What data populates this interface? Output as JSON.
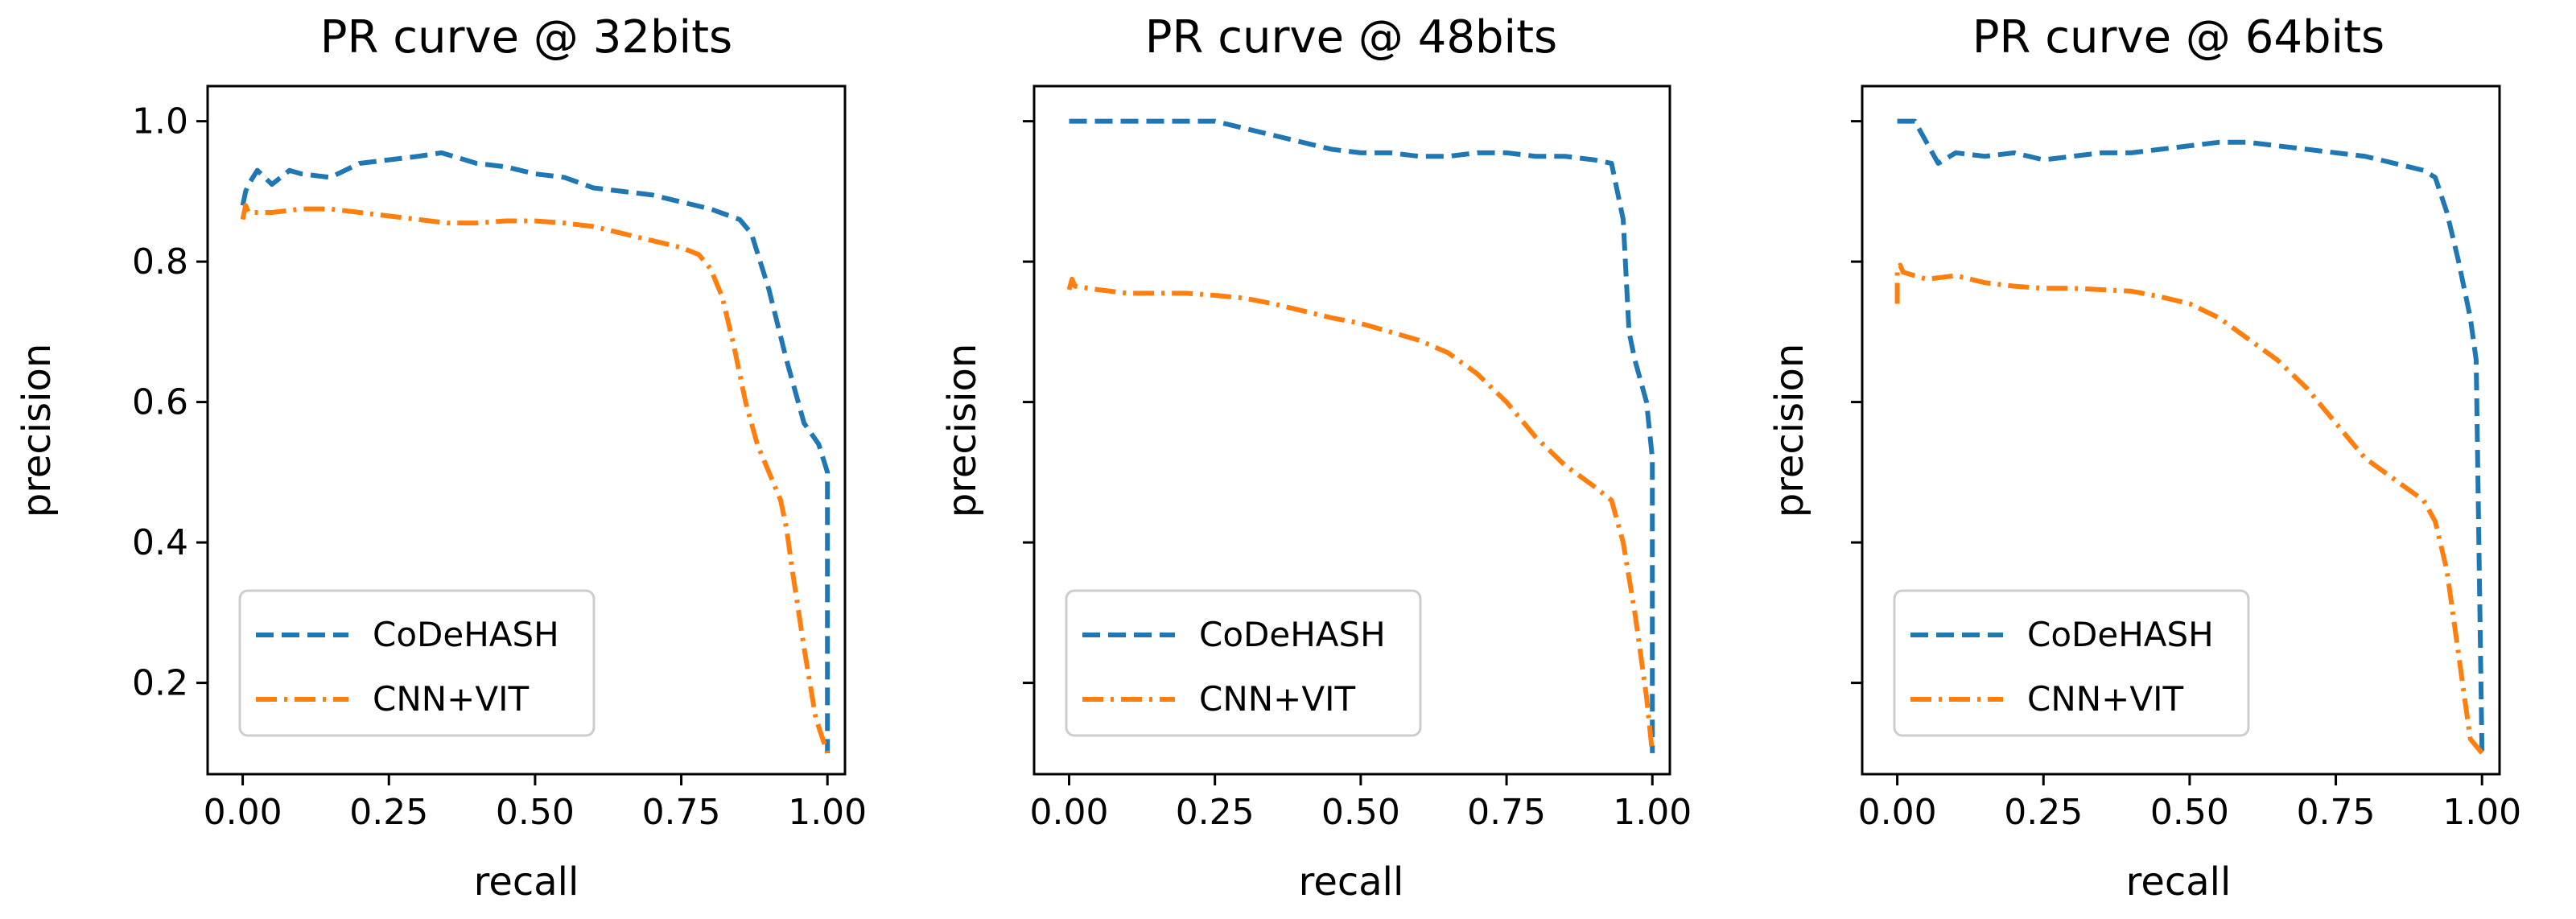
{
  "chart_data": [
    {
      "type": "line",
      "title": "PR curve @ 32bits",
      "xlabel": "recall",
      "ylabel": "precision",
      "xlim": [
        -0.06,
        1.03
      ],
      "ylim": [
        0.07,
        1.05
      ],
      "xticks": [
        0.0,
        0.25,
        0.5,
        0.75,
        1.0
      ],
      "xtick_labels": [
        "0.00",
        "0.25",
        "0.50",
        "0.75",
        "1.00"
      ],
      "yticks": [
        0.2,
        0.4,
        0.6,
        0.8,
        1.0
      ],
      "ytick_labels": [
        "0.2",
        "0.4",
        "0.6",
        "0.8",
        "1.0"
      ],
      "show_ytick_labels": true,
      "legend_position": "lower-left",
      "series": [
        {
          "name": "CoDeHASH",
          "color": "#1f77b4",
          "style": "dashed",
          "x": [
            0.0,
            0.005,
            0.01,
            0.025,
            0.05,
            0.08,
            0.1,
            0.15,
            0.2,
            0.25,
            0.3,
            0.34,
            0.4,
            0.45,
            0.5,
            0.55,
            0.6,
            0.65,
            0.7,
            0.75,
            0.8,
            0.85,
            0.87,
            0.9,
            0.93,
            0.96,
            0.985,
            1.0,
            1.0
          ],
          "y": [
            0.88,
            0.9,
            0.91,
            0.93,
            0.91,
            0.93,
            0.925,
            0.92,
            0.94,
            0.945,
            0.95,
            0.955,
            0.94,
            0.935,
            0.925,
            0.92,
            0.905,
            0.9,
            0.895,
            0.885,
            0.875,
            0.86,
            0.84,
            0.76,
            0.66,
            0.57,
            0.54,
            0.5,
            0.1
          ]
        },
        {
          "name": "CNN+VIT",
          "color": "#ff7f0e",
          "style": "dashdot",
          "x": [
            0.0,
            0.005,
            0.01,
            0.02,
            0.05,
            0.1,
            0.15,
            0.2,
            0.25,
            0.3,
            0.35,
            0.4,
            0.45,
            0.5,
            0.55,
            0.6,
            0.65,
            0.7,
            0.75,
            0.78,
            0.8,
            0.82,
            0.84,
            0.86,
            0.88,
            0.9,
            0.92,
            0.93,
            0.94,
            0.96,
            0.98,
            1.0
          ],
          "y": [
            0.86,
            0.88,
            0.87,
            0.87,
            0.87,
            0.875,
            0.875,
            0.87,
            0.865,
            0.86,
            0.855,
            0.855,
            0.858,
            0.858,
            0.855,
            0.85,
            0.84,
            0.83,
            0.82,
            0.81,
            0.79,
            0.75,
            0.68,
            0.6,
            0.54,
            0.5,
            0.46,
            0.42,
            0.36,
            0.25,
            0.15,
            0.1
          ]
        }
      ]
    },
    {
      "type": "line",
      "title": "PR curve @ 48bits",
      "xlabel": "recall",
      "ylabel": "precision",
      "xlim": [
        -0.06,
        1.03
      ],
      "ylim": [
        0.07,
        1.05
      ],
      "xticks": [
        0.0,
        0.25,
        0.5,
        0.75,
        1.0
      ],
      "xtick_labels": [
        "0.00",
        "0.25",
        "0.50",
        "0.75",
        "1.00"
      ],
      "yticks": [
        0.2,
        0.4,
        0.6,
        0.8,
        1.0
      ],
      "ytick_labels": [
        "",
        "",
        "",
        "",
        ""
      ],
      "show_ytick_labels": false,
      "legend_position": "lower-left",
      "series": [
        {
          "name": "CoDeHASH",
          "color": "#1f77b4",
          "style": "dashed",
          "x": [
            0.0,
            0.05,
            0.1,
            0.15,
            0.2,
            0.25,
            0.3,
            0.35,
            0.4,
            0.45,
            0.5,
            0.55,
            0.6,
            0.65,
            0.7,
            0.75,
            0.8,
            0.85,
            0.9,
            0.93,
            0.95,
            0.96,
            0.97,
            0.99,
            1.0,
            1.0
          ],
          "y": [
            1.0,
            1.0,
            1.0,
            1.0,
            1.0,
            1.0,
            0.99,
            0.98,
            0.97,
            0.96,
            0.955,
            0.955,
            0.95,
            0.95,
            0.955,
            0.955,
            0.95,
            0.95,
            0.945,
            0.94,
            0.86,
            0.7,
            0.66,
            0.6,
            0.52,
            0.1
          ]
        },
        {
          "name": "CNN+VIT",
          "color": "#ff7f0e",
          "style": "dashdot",
          "x": [
            0.0,
            0.005,
            0.01,
            0.05,
            0.1,
            0.15,
            0.2,
            0.25,
            0.3,
            0.35,
            0.4,
            0.45,
            0.5,
            0.55,
            0.6,
            0.65,
            0.7,
            0.75,
            0.8,
            0.85,
            0.9,
            0.93,
            0.95,
            0.97,
            0.99,
            1.0
          ],
          "y": [
            0.76,
            0.775,
            0.765,
            0.76,
            0.755,
            0.755,
            0.755,
            0.752,
            0.748,
            0.74,
            0.73,
            0.72,
            0.712,
            0.7,
            0.688,
            0.67,
            0.64,
            0.6,
            0.55,
            0.51,
            0.48,
            0.46,
            0.4,
            0.3,
            0.18,
            0.1
          ]
        }
      ]
    },
    {
      "type": "line",
      "title": "PR curve @ 64bits",
      "xlabel": "recall",
      "ylabel": "precision",
      "xlim": [
        -0.06,
        1.03
      ],
      "ylim": [
        0.07,
        1.05
      ],
      "xticks": [
        0.0,
        0.25,
        0.5,
        0.75,
        1.0
      ],
      "xtick_labels": [
        "0.00",
        "0.25",
        "0.50",
        "0.75",
        "1.00"
      ],
      "yticks": [
        0.2,
        0.4,
        0.6,
        0.8,
        1.0
      ],
      "ytick_labels": [
        "",
        "",
        "",
        "",
        ""
      ],
      "show_ytick_labels": false,
      "legend_position": "lower-left",
      "series": [
        {
          "name": "CoDeHASH",
          "color": "#1f77b4",
          "style": "dashed",
          "x": [
            0.0,
            0.03,
            0.05,
            0.07,
            0.1,
            0.15,
            0.2,
            0.25,
            0.3,
            0.35,
            0.4,
            0.45,
            0.5,
            0.55,
            0.6,
            0.65,
            0.7,
            0.75,
            0.8,
            0.85,
            0.9,
            0.92,
            0.94,
            0.96,
            0.98,
            0.99,
            1.0
          ],
          "y": [
            1.0,
            1.0,
            0.97,
            0.94,
            0.955,
            0.95,
            0.955,
            0.945,
            0.95,
            0.955,
            0.955,
            0.96,
            0.965,
            0.97,
            0.97,
            0.965,
            0.96,
            0.955,
            0.95,
            0.94,
            0.93,
            0.92,
            0.87,
            0.8,
            0.72,
            0.66,
            0.1
          ]
        },
        {
          "name": "CNN+VIT",
          "color": "#ff7f0e",
          "style": "dashdot",
          "x": [
            0.0,
            0.0,
            0.005,
            0.01,
            0.05,
            0.1,
            0.15,
            0.2,
            0.25,
            0.3,
            0.35,
            0.4,
            0.45,
            0.5,
            0.55,
            0.6,
            0.65,
            0.7,
            0.75,
            0.8,
            0.85,
            0.9,
            0.92,
            0.94,
            0.96,
            0.98,
            1.0
          ],
          "y": [
            0.74,
            0.79,
            0.795,
            0.785,
            0.775,
            0.78,
            0.77,
            0.765,
            0.762,
            0.762,
            0.76,
            0.758,
            0.75,
            0.74,
            0.72,
            0.69,
            0.66,
            0.62,
            0.57,
            0.52,
            0.49,
            0.46,
            0.43,
            0.36,
            0.24,
            0.12,
            0.1
          ]
        }
      ]
    }
  ]
}
